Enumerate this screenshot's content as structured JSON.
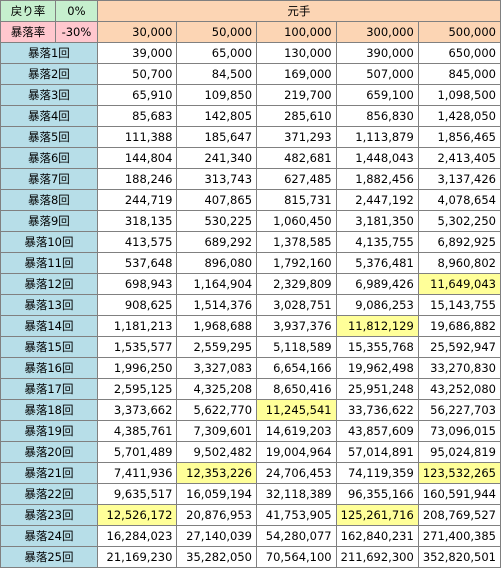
{
  "header": {
    "rebound_label": "戻り率",
    "rebound_value": "0%",
    "crash_label": "暴落率",
    "crash_value": "-30%",
    "principal_label": "元手",
    "principal_columns": [
      "30,000",
      "50,000",
      "100,000",
      "300,000",
      "500,000"
    ]
  },
  "colors": {
    "header_mint": "#c6efce",
    "header_pink": "#ffc7ce",
    "header_peach": "#fcd5b4",
    "row_label_blue": "#b7dee8",
    "highlight_yellow": "#ffff99"
  },
  "rows": [
    {
      "label": "暴落1回",
      "values": [
        "39,000",
        "65,000",
        "130,000",
        "390,000",
        "650,000"
      ],
      "highlight": []
    },
    {
      "label": "暴落2回",
      "values": [
        "50,700",
        "84,500",
        "169,000",
        "507,000",
        "845,000"
      ],
      "highlight": []
    },
    {
      "label": "暴落3回",
      "values": [
        "65,910",
        "109,850",
        "219,700",
        "659,100",
        "1,098,500"
      ],
      "highlight": []
    },
    {
      "label": "暴落4回",
      "values": [
        "85,683",
        "142,805",
        "285,610",
        "856,830",
        "1,428,050"
      ],
      "highlight": []
    },
    {
      "label": "暴落5回",
      "values": [
        "111,388",
        "185,647",
        "371,293",
        "1,113,879",
        "1,856,465"
      ],
      "highlight": []
    },
    {
      "label": "暴落6回",
      "values": [
        "144,804",
        "241,340",
        "482,681",
        "1,448,043",
        "2,413,405"
      ],
      "highlight": []
    },
    {
      "label": "暴落7回",
      "values": [
        "188,246",
        "313,743",
        "627,485",
        "1,882,456",
        "3,137,426"
      ],
      "highlight": []
    },
    {
      "label": "暴落8回",
      "values": [
        "244,719",
        "407,865",
        "815,731",
        "2,447,192",
        "4,078,654"
      ],
      "highlight": []
    },
    {
      "label": "暴落9回",
      "values": [
        "318,135",
        "530,225",
        "1,060,450",
        "3,181,350",
        "5,302,250"
      ],
      "highlight": []
    },
    {
      "label": "暴落10回",
      "values": [
        "413,575",
        "689,292",
        "1,378,585",
        "4,135,755",
        "6,892,925"
      ],
      "highlight": []
    },
    {
      "label": "暴落11回",
      "values": [
        "537,648",
        "896,080",
        "1,792,160",
        "5,376,481",
        "8,960,802"
      ],
      "highlight": []
    },
    {
      "label": "暴落12回",
      "values": [
        "698,943",
        "1,164,904",
        "2,329,809",
        "6,989,426",
        "11,649,043"
      ],
      "highlight": [
        4
      ]
    },
    {
      "label": "暴落13回",
      "values": [
        "908,625",
        "1,514,376",
        "3,028,751",
        "9,086,253",
        "15,143,755"
      ],
      "highlight": []
    },
    {
      "label": "暴落14回",
      "values": [
        "1,181,213",
        "1,968,688",
        "3,937,376",
        "11,812,129",
        "19,686,882"
      ],
      "highlight": [
        3
      ]
    },
    {
      "label": "暴落15回",
      "values": [
        "1,535,577",
        "2,559,295",
        "5,118,589",
        "15,355,768",
        "25,592,947"
      ],
      "highlight": []
    },
    {
      "label": "暴落16回",
      "values": [
        "1,996,250",
        "3,327,083",
        "6,654,166",
        "19,962,498",
        "33,270,830"
      ],
      "highlight": []
    },
    {
      "label": "暴落17回",
      "values": [
        "2,595,125",
        "4,325,208",
        "8,650,416",
        "25,951,248",
        "43,252,080"
      ],
      "highlight": []
    },
    {
      "label": "暴落18回",
      "values": [
        "3,373,662",
        "5,622,770",
        "11,245,541",
        "33,736,622",
        "56,227,703"
      ],
      "highlight": [
        2
      ]
    },
    {
      "label": "暴落19回",
      "values": [
        "4,385,761",
        "7,309,601",
        "14,619,203",
        "43,857,609",
        "73,096,015"
      ],
      "highlight": []
    },
    {
      "label": "暴落20回",
      "values": [
        "5,701,489",
        "9,502,482",
        "19,004,964",
        "57,014,891",
        "95,024,819"
      ],
      "highlight": []
    },
    {
      "label": "暴落21回",
      "values": [
        "7,411,936",
        "12,353,226",
        "24,706,453",
        "74,119,359",
        "123,532,265"
      ],
      "highlight": [
        1,
        4
      ]
    },
    {
      "label": "暴落22回",
      "values": [
        "9,635,517",
        "16,059,194",
        "32,118,389",
        "96,355,166",
        "160,591,944"
      ],
      "highlight": []
    },
    {
      "label": "暴落23回",
      "values": [
        "12,526,172",
        "20,876,953",
        "41,753,905",
        "125,261,716",
        "208,769,527"
      ],
      "highlight": [
        0,
        3
      ]
    },
    {
      "label": "暴落24回",
      "values": [
        "16,284,023",
        "27,140,039",
        "54,280,077",
        "162,840,231",
        "271,400,385"
      ],
      "highlight": []
    },
    {
      "label": "暴落25回",
      "values": [
        "21,169,230",
        "35,282,050",
        "70,564,100",
        "211,692,300",
        "352,820,501"
      ],
      "highlight": []
    }
  ]
}
